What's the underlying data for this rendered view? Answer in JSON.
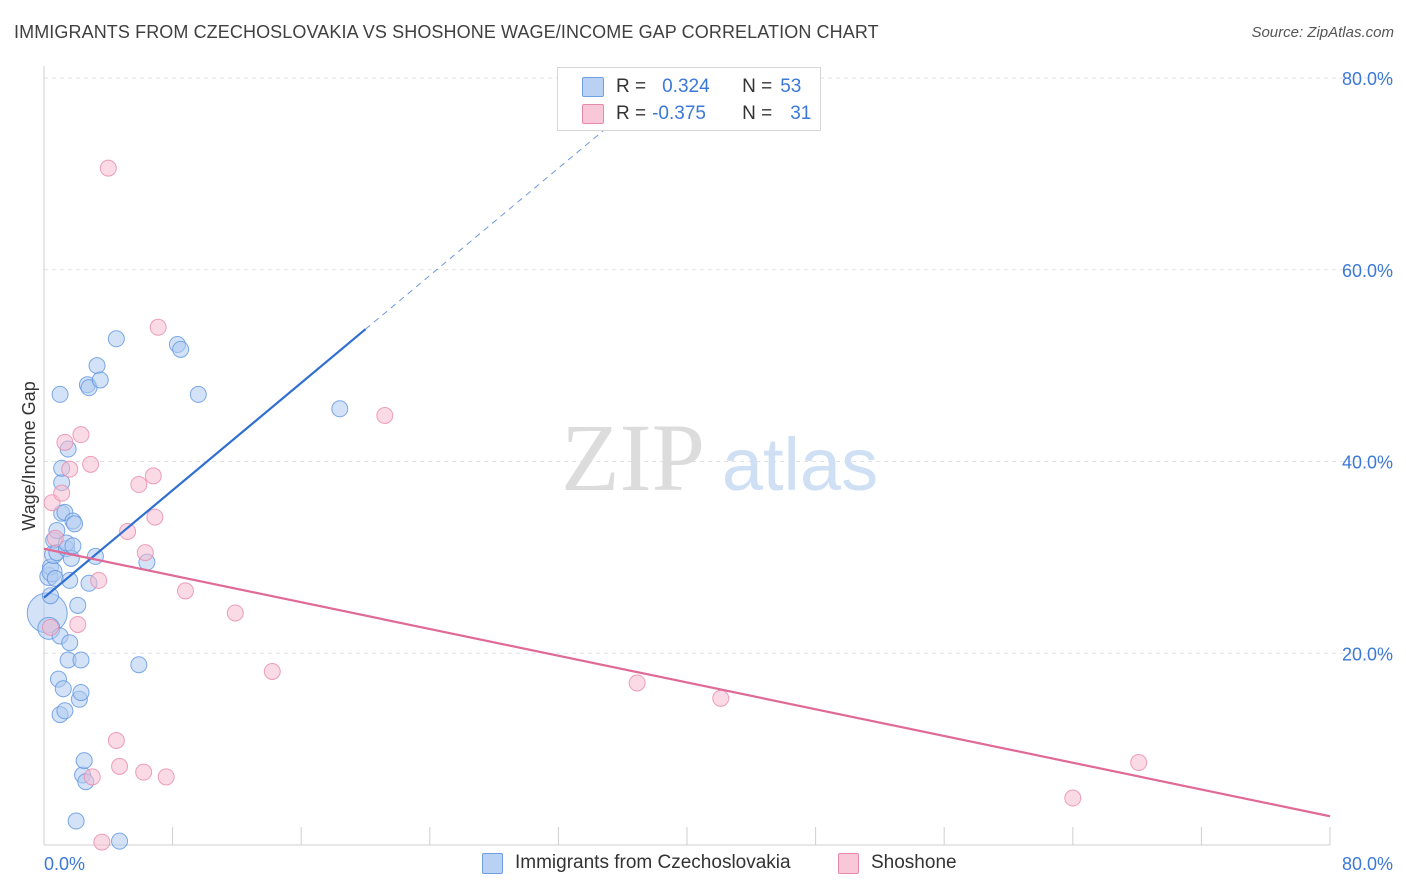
{
  "title": "IMMIGRANTS FROM CZECHOSLOVAKIA VS SHOSHONE WAGE/INCOME GAP CORRELATION CHART",
  "source": "Source: ZipAtlas.com",
  "watermark": {
    "zip": "ZIP",
    "atlas": "atlas"
  },
  "legend": {
    "r_label": "R =",
    "n_label": "N =",
    "rows": [
      {
        "r": "0.324",
        "n": "53"
      },
      {
        "r": "-0.375",
        "n": "31"
      }
    ]
  },
  "colors": {
    "blue_fill": "#aecbf1",
    "blue_stroke": "#5e95e0",
    "blue_line": "#2e6fd1",
    "pink_fill": "#f6bcd0",
    "pink_stroke": "#e889ab",
    "pink_line": "#e06a96",
    "tick_text": "#3b78d8",
    "grid": "#e2e2e2"
  },
  "chart_data": {
    "type": "scatter",
    "title": "IMMIGRANTS FROM CZECHOSLOVAKIA VS SHOSHONE WAGE/INCOME GAP CORRELATION CHART",
    "xlabel": "",
    "ylabel": "Wage/Income Gap",
    "xlim": [
      0,
      80
    ],
    "ylim": [
      0,
      80
    ],
    "x_tick_labels": [
      {
        "value": 0,
        "label": "0.0%"
      },
      {
        "value": 80,
        "label": "80.0%"
      }
    ],
    "y_tick_labels": [
      {
        "value": 20,
        "label": "20.0%"
      },
      {
        "value": 40,
        "label": "40.0%"
      },
      {
        "value": 60,
        "label": "60.0%"
      },
      {
        "value": 80,
        "label": "80.0%"
      }
    ],
    "x_minor_ticks": [
      8,
      16,
      24,
      32,
      40,
      48,
      56,
      64,
      72,
      80
    ],
    "series": [
      {
        "name": "Immigrants from Czechoslovakia",
        "color": "blue",
        "R": 0.324,
        "N": 53,
        "trend": {
          "x0": 0,
          "y0": 25.8,
          "x1": 20.0,
          "y1": 53.8,
          "dash_x1": 37.0,
          "dash_y1": 77.6
        },
        "points": [
          [
            0.2,
            24.2,
            20
          ],
          [
            0.3,
            22.6,
            11
          ],
          [
            0.3,
            28.0,
            9
          ],
          [
            0.4,
            26.0,
            8
          ],
          [
            0.4,
            29.0,
            8
          ],
          [
            0.5,
            28.5,
            10
          ],
          [
            0.6,
            30.3,
            9
          ],
          [
            0.6,
            31.8,
            8
          ],
          [
            0.7,
            27.8,
            8
          ],
          [
            0.8,
            32.8,
            8
          ],
          [
            0.8,
            30.5,
            8
          ],
          [
            0.9,
            17.3,
            8
          ],
          [
            1.0,
            13.6,
            8
          ],
          [
            1.0,
            21.8,
            8
          ],
          [
            1.0,
            47.0,
            8
          ],
          [
            1.1,
            37.8,
            8
          ],
          [
            1.1,
            34.6,
            8
          ],
          [
            1.1,
            39.3,
            8
          ],
          [
            1.2,
            16.3,
            8
          ],
          [
            1.3,
            14.0,
            8
          ],
          [
            1.3,
            34.7,
            8
          ],
          [
            1.4,
            30.9,
            8
          ],
          [
            1.4,
            31.5,
            8
          ],
          [
            1.5,
            19.3,
            8
          ],
          [
            1.5,
            41.3,
            8
          ],
          [
            1.6,
            21.1,
            8
          ],
          [
            1.6,
            27.6,
            8
          ],
          [
            1.7,
            29.9,
            8
          ],
          [
            1.8,
            33.8,
            8
          ],
          [
            1.8,
            31.2,
            8
          ],
          [
            1.9,
            33.5,
            8
          ],
          [
            2.0,
            2.5,
            8
          ],
          [
            2.1,
            25.0,
            8
          ],
          [
            2.2,
            15.2,
            8
          ],
          [
            2.3,
            19.3,
            8
          ],
          [
            2.3,
            15.9,
            8
          ],
          [
            2.4,
            7.3,
            8
          ],
          [
            2.5,
            8.8,
            8
          ],
          [
            2.6,
            6.6,
            8
          ],
          [
            2.7,
            48.0,
            8
          ],
          [
            2.8,
            47.7,
            8
          ],
          [
            2.8,
            27.3,
            8
          ],
          [
            3.2,
            30.1,
            8
          ],
          [
            3.3,
            50.0,
            8
          ],
          [
            3.5,
            48.5,
            8
          ],
          [
            4.5,
            52.8,
            8
          ],
          [
            4.7,
            0.4,
            8
          ],
          [
            5.9,
            18.8,
            8
          ],
          [
            6.4,
            29.5,
            8
          ],
          [
            8.3,
            52.2,
            8
          ],
          [
            8.5,
            51.7,
            8
          ],
          [
            9.6,
            47.0,
            8
          ],
          [
            18.4,
            45.5,
            8
          ]
        ]
      },
      {
        "name": "Shoshone",
        "color": "pink",
        "R": -0.375,
        "N": 31,
        "trend": {
          "x0": 0,
          "y0": 30.9,
          "x1": 80,
          "y1": 3.0
        },
        "points": [
          [
            0.4,
            22.7,
            8
          ],
          [
            0.5,
            35.7,
            8
          ],
          [
            0.7,
            32.0,
            8
          ],
          [
            1.1,
            36.7,
            8
          ],
          [
            1.3,
            42.0,
            8
          ],
          [
            1.6,
            39.2,
            8
          ],
          [
            2.1,
            23.0,
            8
          ],
          [
            2.3,
            42.8,
            8
          ],
          [
            2.9,
            39.7,
            8
          ],
          [
            3.0,
            7.1,
            8
          ],
          [
            3.4,
            27.6,
            8
          ],
          [
            3.6,
            0.3,
            8
          ],
          [
            4.0,
            70.6,
            8
          ],
          [
            4.5,
            10.9,
            8
          ],
          [
            4.7,
            8.2,
            8
          ],
          [
            5.2,
            32.7,
            8
          ],
          [
            5.9,
            37.6,
            8
          ],
          [
            6.2,
            7.6,
            8
          ],
          [
            6.3,
            30.5,
            8
          ],
          [
            6.8,
            38.5,
            8
          ],
          [
            6.9,
            34.2,
            8
          ],
          [
            7.1,
            54.0,
            8
          ],
          [
            7.6,
            7.1,
            8
          ],
          [
            8.8,
            26.5,
            8
          ],
          [
            11.9,
            24.2,
            8
          ],
          [
            14.2,
            18.1,
            8
          ],
          [
            21.2,
            44.8,
            8
          ],
          [
            36.9,
            16.9,
            8
          ],
          [
            42.1,
            15.3,
            8
          ],
          [
            64.0,
            4.9,
            8
          ],
          [
            68.1,
            8.6,
            8
          ]
        ]
      }
    ]
  },
  "bottom_legend": [
    {
      "label": "Immigrants from Czechoslovakia",
      "color": "blue"
    },
    {
      "label": "Shoshone",
      "color": "pink"
    }
  ]
}
